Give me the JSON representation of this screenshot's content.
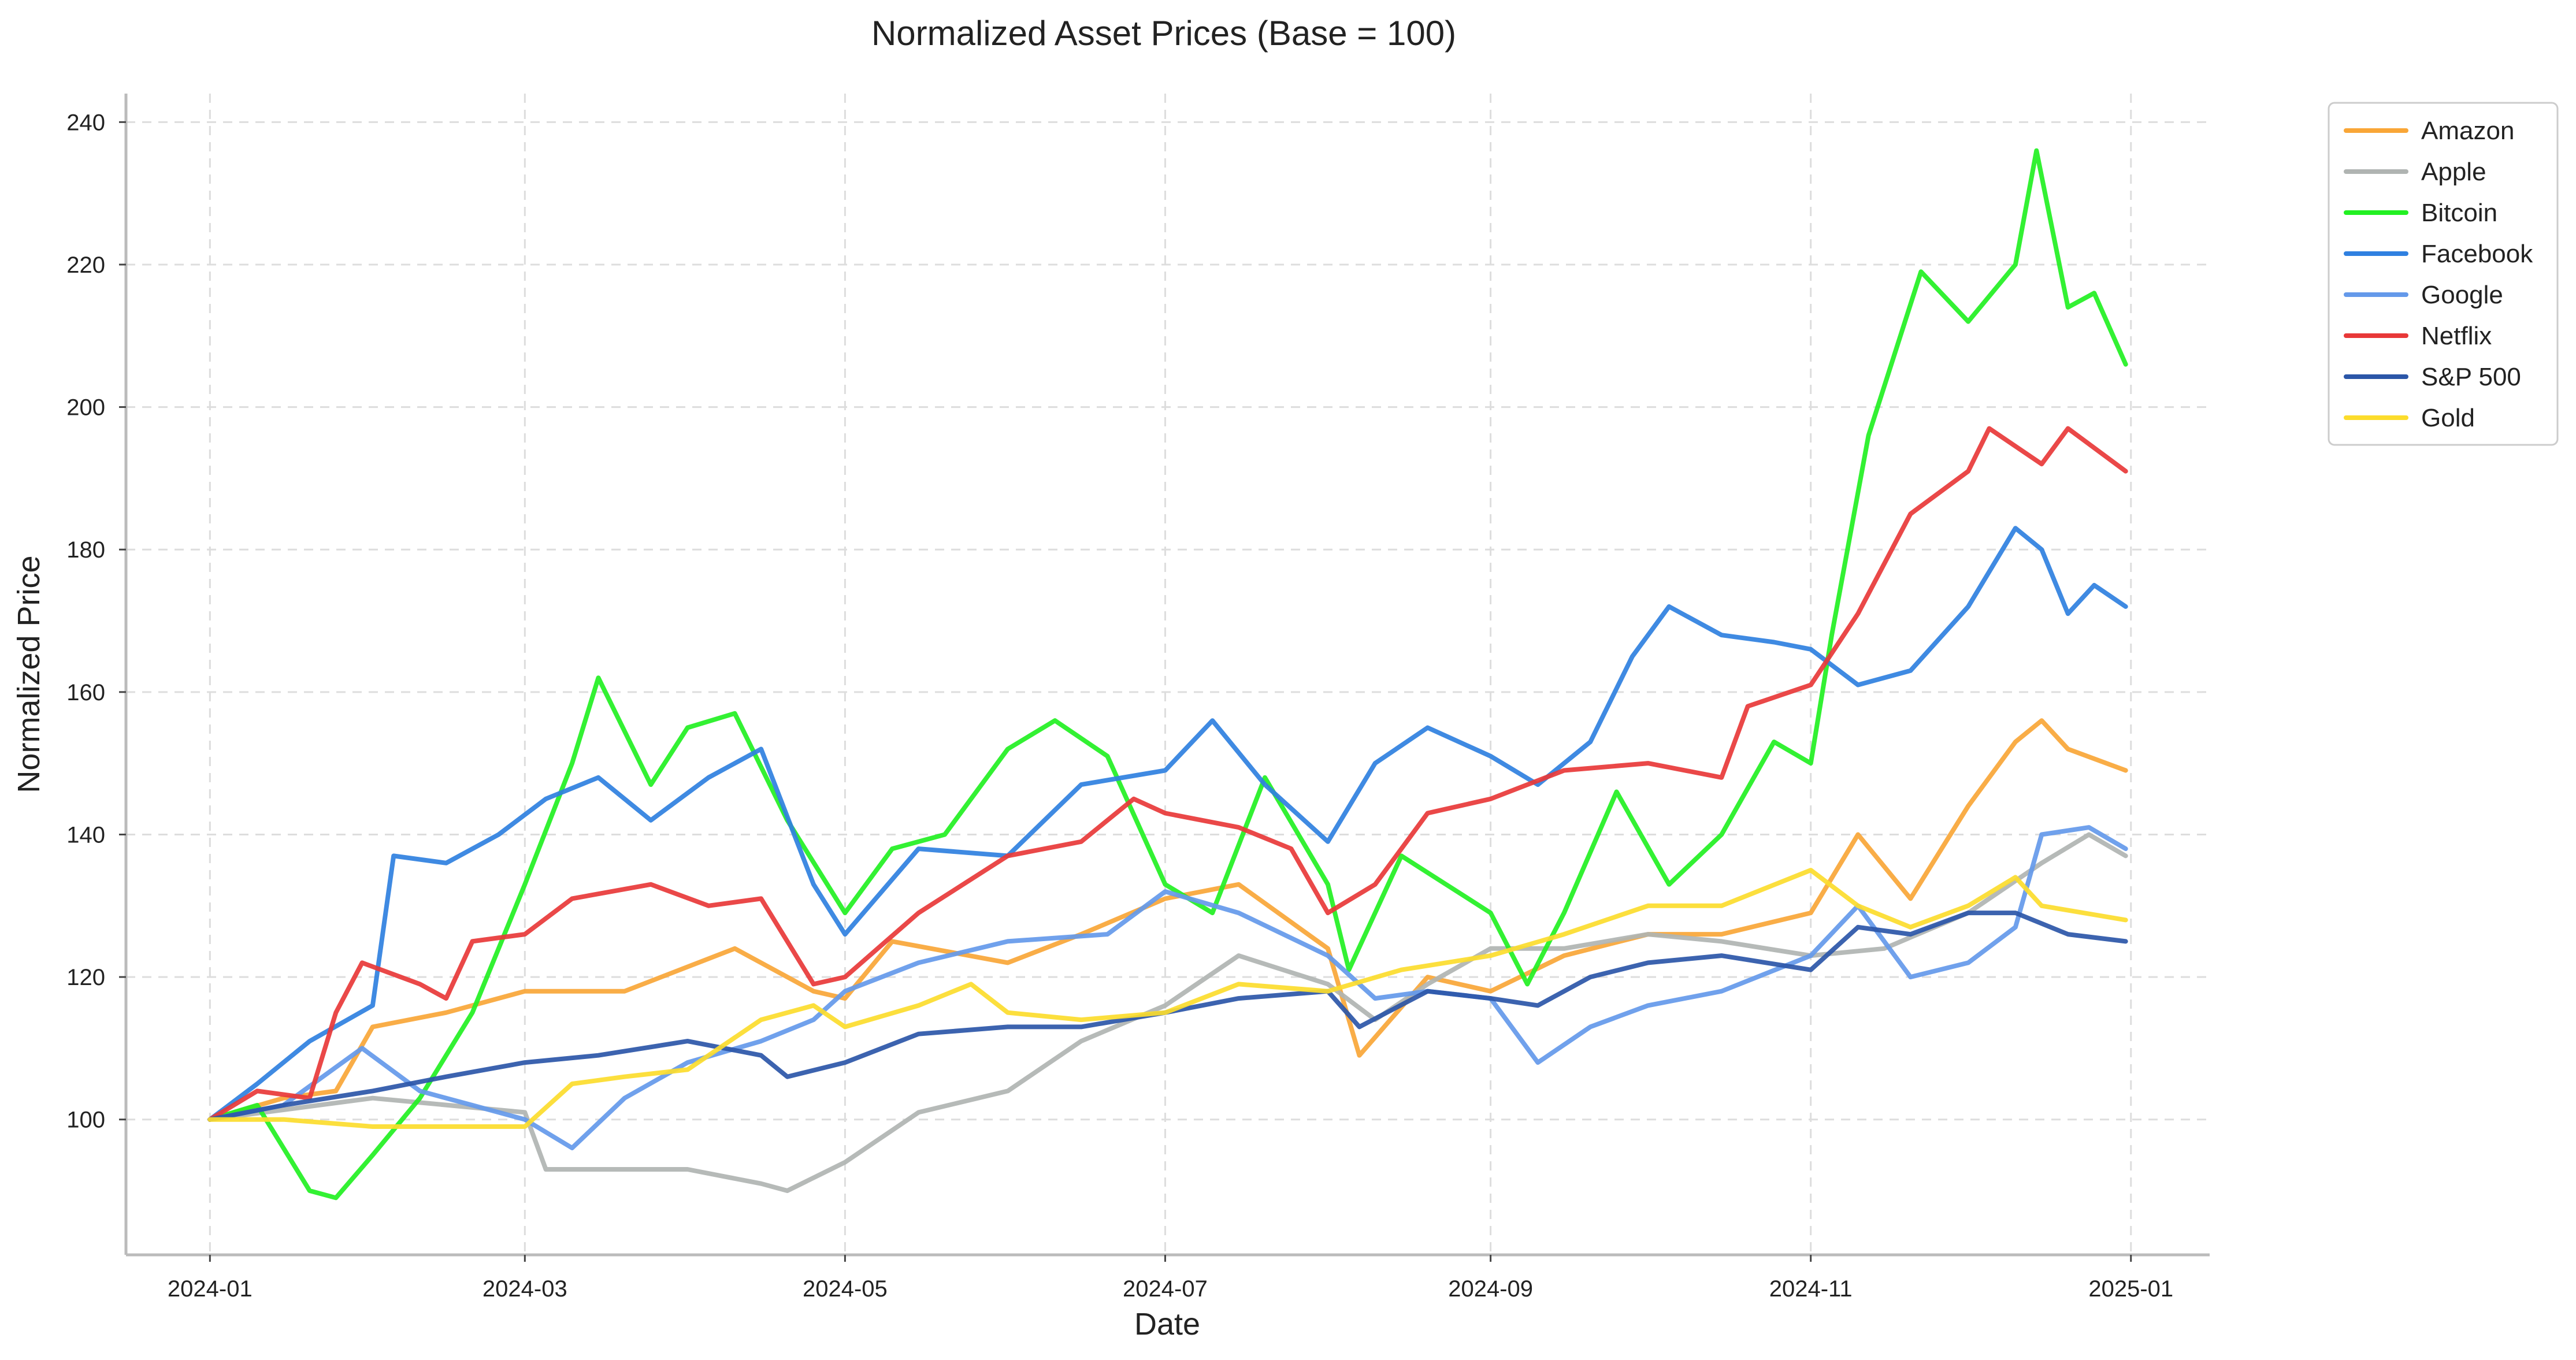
{
  "chart_data": {
    "type": "line",
    "title": "Normalized Asset Prices (Base = 100)",
    "xlabel": "Date",
    "ylabel": "Normalized Price",
    "x_axis": {
      "type": "date",
      "range": [
        "2023-12-16",
        "2025-01-16"
      ],
      "ticks": [
        "2024-01",
        "2024-03",
        "2024-05",
        "2024-07",
        "2024-09",
        "2024-11",
        "2025-01"
      ]
    },
    "y_axis": {
      "range": [
        81,
        244
      ],
      "ticks": [
        100,
        120,
        140,
        160,
        180,
        200,
        220,
        240
      ]
    },
    "grid": true,
    "legend_position": "outside-top-right",
    "series": [
      {
        "name": "Amazon",
        "color": "#f9a637",
        "points": [
          [
            "2024-01-01",
            100
          ],
          [
            "2024-01-15",
            103
          ],
          [
            "2024-01-25",
            104
          ],
          [
            "2024-02-01",
            113
          ],
          [
            "2024-02-15",
            115
          ],
          [
            "2024-03-01",
            118
          ],
          [
            "2024-03-20",
            118
          ],
          [
            "2024-04-10",
            124
          ],
          [
            "2024-04-25",
            118
          ],
          [
            "2024-05-01",
            117
          ],
          [
            "2024-05-10",
            125
          ],
          [
            "2024-06-01",
            122
          ],
          [
            "2024-06-15",
            126
          ],
          [
            "2024-07-01",
            131
          ],
          [
            "2024-07-15",
            133
          ],
          [
            "2024-08-01",
            124
          ],
          [
            "2024-08-07",
            109
          ],
          [
            "2024-08-20",
            120
          ],
          [
            "2024-09-01",
            118
          ],
          [
            "2024-09-15",
            123
          ],
          [
            "2024-10-01",
            126
          ],
          [
            "2024-10-15",
            126
          ],
          [
            "2024-11-01",
            129
          ],
          [
            "2024-11-10",
            140
          ],
          [
            "2024-11-20",
            131
          ],
          [
            "2024-12-01",
            144
          ],
          [
            "2024-12-10",
            153
          ],
          [
            "2024-12-15",
            156
          ],
          [
            "2024-12-20",
            152
          ],
          [
            "2024-12-31",
            149
          ]
        ]
      },
      {
        "name": "Apple",
        "color": "#b0b4b2",
        "points": [
          [
            "2024-01-01",
            100
          ],
          [
            "2024-02-01",
            103
          ],
          [
            "2024-03-01",
            101
          ],
          [
            "2024-03-05",
            93
          ],
          [
            "2024-04-01",
            93
          ],
          [
            "2024-04-15",
            91
          ],
          [
            "2024-04-20",
            90
          ],
          [
            "2024-05-01",
            94
          ],
          [
            "2024-05-15",
            101
          ],
          [
            "2024-06-01",
            104
          ],
          [
            "2024-06-15",
            111
          ],
          [
            "2024-07-01",
            116
          ],
          [
            "2024-07-15",
            123
          ],
          [
            "2024-08-01",
            119
          ],
          [
            "2024-08-10",
            114
          ],
          [
            "2024-08-20",
            119
          ],
          [
            "2024-09-01",
            124
          ],
          [
            "2024-09-15",
            124
          ],
          [
            "2024-10-01",
            126
          ],
          [
            "2024-10-15",
            125
          ],
          [
            "2024-11-01",
            123
          ],
          [
            "2024-11-15",
            124
          ],
          [
            "2024-12-01",
            129
          ],
          [
            "2024-12-15",
            136
          ],
          [
            "2024-12-24",
            140
          ],
          [
            "2024-12-31",
            137
          ]
        ]
      },
      {
        "name": "Bitcoin",
        "color": "#22f022",
        "points": [
          [
            "2024-01-01",
            100
          ],
          [
            "2024-01-10",
            102
          ],
          [
            "2024-01-20",
            90
          ],
          [
            "2024-01-25",
            89
          ],
          [
            "2024-02-01",
            95
          ],
          [
            "2024-02-10",
            103
          ],
          [
            "2024-02-20",
            115
          ],
          [
            "2024-03-01",
            133
          ],
          [
            "2024-03-10",
            150
          ],
          [
            "2024-03-15",
            162
          ],
          [
            "2024-03-25",
            147
          ],
          [
            "2024-04-01",
            155
          ],
          [
            "2024-04-10",
            157
          ],
          [
            "2024-04-20",
            142
          ],
          [
            "2024-05-01",
            129
          ],
          [
            "2024-05-10",
            138
          ],
          [
            "2024-05-20",
            140
          ],
          [
            "2024-06-01",
            152
          ],
          [
            "2024-06-10",
            156
          ],
          [
            "2024-06-20",
            151
          ],
          [
            "2024-07-01",
            133
          ],
          [
            "2024-07-10",
            129
          ],
          [
            "2024-07-20",
            148
          ],
          [
            "2024-08-01",
            133
          ],
          [
            "2024-08-05",
            121
          ],
          [
            "2024-08-15",
            137
          ],
          [
            "2024-09-01",
            129
          ],
          [
            "2024-09-08",
            119
          ],
          [
            "2024-09-15",
            129
          ],
          [
            "2024-09-25",
            146
          ],
          [
            "2024-10-05",
            133
          ],
          [
            "2024-10-15",
            140
          ],
          [
            "2024-10-25",
            153
          ],
          [
            "2024-11-01",
            150
          ],
          [
            "2024-11-05",
            168
          ],
          [
            "2024-11-12",
            196
          ],
          [
            "2024-11-22",
            219
          ],
          [
            "2024-12-01",
            212
          ],
          [
            "2024-12-10",
            220
          ],
          [
            "2024-12-14",
            236
          ],
          [
            "2024-12-20",
            214
          ],
          [
            "2024-12-25",
            216
          ],
          [
            "2024-12-31",
            206
          ]
        ]
      },
      {
        "name": "Facebook",
        "color": "#2f80e0",
        "points": [
          [
            "2024-01-01",
            100
          ],
          [
            "2024-01-10",
            105
          ],
          [
            "2024-01-20",
            111
          ],
          [
            "2024-02-01",
            116
          ],
          [
            "2024-02-05",
            137
          ],
          [
            "2024-02-15",
            136
          ],
          [
            "2024-02-25",
            140
          ],
          [
            "2024-03-05",
            145
          ],
          [
            "2024-03-15",
            148
          ],
          [
            "2024-03-25",
            142
          ],
          [
            "2024-04-05",
            148
          ],
          [
            "2024-04-15",
            152
          ],
          [
            "2024-04-25",
            133
          ],
          [
            "2024-05-01",
            126
          ],
          [
            "2024-05-15",
            138
          ],
          [
            "2024-06-01",
            137
          ],
          [
            "2024-06-15",
            147
          ],
          [
            "2024-07-01",
            149
          ],
          [
            "2024-07-10",
            156
          ],
          [
            "2024-07-20",
            147
          ],
          [
            "2024-08-01",
            139
          ],
          [
            "2024-08-10",
            150
          ],
          [
            "2024-08-20",
            155
          ],
          [
            "2024-09-01",
            151
          ],
          [
            "2024-09-10",
            147
          ],
          [
            "2024-09-20",
            153
          ],
          [
            "2024-09-28",
            165
          ],
          [
            "2024-10-05",
            172
          ],
          [
            "2024-10-15",
            168
          ],
          [
            "2024-10-25",
            167
          ],
          [
            "2024-11-01",
            166
          ],
          [
            "2024-11-10",
            161
          ],
          [
            "2024-11-20",
            163
          ],
          [
            "2024-12-01",
            172
          ],
          [
            "2024-12-10",
            183
          ],
          [
            "2024-12-15",
            180
          ],
          [
            "2024-12-20",
            171
          ],
          [
            "2024-12-25",
            175
          ],
          [
            "2024-12-31",
            172
          ]
        ]
      },
      {
        "name": "Google",
        "color": "#6499ea",
        "points": [
          [
            "2024-01-01",
            100
          ],
          [
            "2024-01-15",
            102
          ],
          [
            "2024-01-30",
            110
          ],
          [
            "2024-02-10",
            104
          ],
          [
            "2024-02-20",
            102
          ],
          [
            "2024-03-01",
            100
          ],
          [
            "2024-03-10",
            96
          ],
          [
            "2024-03-20",
            103
          ],
          [
            "2024-04-01",
            108
          ],
          [
            "2024-04-15",
            111
          ],
          [
            "2024-04-25",
            114
          ],
          [
            "2024-05-01",
            118
          ],
          [
            "2024-05-15",
            122
          ],
          [
            "2024-06-01",
            125
          ],
          [
            "2024-06-20",
            126
          ],
          [
            "2024-07-01",
            132
          ],
          [
            "2024-07-15",
            129
          ],
          [
            "2024-08-01",
            123
          ],
          [
            "2024-08-10",
            117
          ],
          [
            "2024-08-20",
            118
          ],
          [
            "2024-09-01",
            117
          ],
          [
            "2024-09-10",
            108
          ],
          [
            "2024-09-20",
            113
          ],
          [
            "2024-10-01",
            116
          ],
          [
            "2024-10-15",
            118
          ],
          [
            "2024-11-01",
            123
          ],
          [
            "2024-11-10",
            130
          ],
          [
            "2024-11-20",
            120
          ],
          [
            "2024-12-01",
            122
          ],
          [
            "2024-12-10",
            127
          ],
          [
            "2024-12-15",
            140
          ],
          [
            "2024-12-24",
            141
          ],
          [
            "2024-12-31",
            138
          ]
        ]
      },
      {
        "name": "Netflix",
        "color": "#e83838",
        "points": [
          [
            "2024-01-01",
            100
          ],
          [
            "2024-01-10",
            104
          ],
          [
            "2024-01-20",
            103
          ],
          [
            "2024-01-25",
            115
          ],
          [
            "2024-01-30",
            122
          ],
          [
            "2024-02-10",
            119
          ],
          [
            "2024-02-15",
            117
          ],
          [
            "2024-02-20",
            125
          ],
          [
            "2024-03-01",
            126
          ],
          [
            "2024-03-10",
            131
          ],
          [
            "2024-03-25",
            133
          ],
          [
            "2024-04-05",
            130
          ],
          [
            "2024-04-15",
            131
          ],
          [
            "2024-04-25",
            119
          ],
          [
            "2024-05-01",
            120
          ],
          [
            "2024-05-15",
            129
          ],
          [
            "2024-06-01",
            137
          ],
          [
            "2024-06-15",
            139
          ],
          [
            "2024-06-25",
            145
          ],
          [
            "2024-07-01",
            143
          ],
          [
            "2024-07-15",
            141
          ],
          [
            "2024-07-25",
            138
          ],
          [
            "2024-08-01",
            129
          ],
          [
            "2024-08-10",
            133
          ],
          [
            "2024-08-20",
            143
          ],
          [
            "2024-09-01",
            145
          ],
          [
            "2024-09-15",
            149
          ],
          [
            "2024-10-01",
            150
          ],
          [
            "2024-10-15",
            148
          ],
          [
            "2024-10-20",
            158
          ],
          [
            "2024-11-01",
            161
          ],
          [
            "2024-11-10",
            171
          ],
          [
            "2024-11-20",
            185
          ],
          [
            "2024-12-01",
            191
          ],
          [
            "2024-12-05",
            197
          ],
          [
            "2024-12-15",
            192
          ],
          [
            "2024-12-20",
            197
          ],
          [
            "2024-12-31",
            191
          ]
        ]
      },
      {
        "name": "S&P 500",
        "color": "#2b56a8",
        "points": [
          [
            "2024-01-01",
            100
          ],
          [
            "2024-01-15",
            102
          ],
          [
            "2024-02-01",
            104
          ],
          [
            "2024-02-15",
            106
          ],
          [
            "2024-03-01",
            108
          ],
          [
            "2024-03-15",
            109
          ],
          [
            "2024-04-01",
            111
          ],
          [
            "2024-04-15",
            109
          ],
          [
            "2024-04-20",
            106
          ],
          [
            "2024-05-01",
            108
          ],
          [
            "2024-05-15",
            112
          ],
          [
            "2024-06-01",
            113
          ],
          [
            "2024-06-15",
            113
          ],
          [
            "2024-07-01",
            115
          ],
          [
            "2024-07-15",
            117
          ],
          [
            "2024-08-01",
            118
          ],
          [
            "2024-08-07",
            113
          ],
          [
            "2024-08-20",
            118
          ],
          [
            "2024-09-01",
            117
          ],
          [
            "2024-09-10",
            116
          ],
          [
            "2024-09-20",
            120
          ],
          [
            "2024-10-01",
            122
          ],
          [
            "2024-10-15",
            123
          ],
          [
            "2024-11-01",
            121
          ],
          [
            "2024-11-10",
            127
          ],
          [
            "2024-11-20",
            126
          ],
          [
            "2024-12-01",
            129
          ],
          [
            "2024-12-10",
            129
          ],
          [
            "2024-12-20",
            126
          ],
          [
            "2024-12-31",
            125
          ]
        ]
      },
      {
        "name": "Gold",
        "color": "#fcdc2c",
        "points": [
          [
            "2024-01-01",
            100
          ],
          [
            "2024-01-15",
            100
          ],
          [
            "2024-02-01",
            99
          ],
          [
            "2024-02-15",
            99
          ],
          [
            "2024-03-01",
            99
          ],
          [
            "2024-03-10",
            105
          ],
          [
            "2024-03-20",
            106
          ],
          [
            "2024-04-01",
            107
          ],
          [
            "2024-04-15",
            114
          ],
          [
            "2024-04-25",
            116
          ],
          [
            "2024-05-01",
            113
          ],
          [
            "2024-05-15",
            116
          ],
          [
            "2024-05-25",
            119
          ],
          [
            "2024-06-01",
            115
          ],
          [
            "2024-06-15",
            114
          ],
          [
            "2024-07-01",
            115
          ],
          [
            "2024-07-15",
            119
          ],
          [
            "2024-08-01",
            118
          ],
          [
            "2024-08-15",
            121
          ],
          [
            "2024-09-01",
            123
          ],
          [
            "2024-09-15",
            126
          ],
          [
            "2024-10-01",
            130
          ],
          [
            "2024-10-15",
            130
          ],
          [
            "2024-11-01",
            135
          ],
          [
            "2024-11-10",
            130
          ],
          [
            "2024-11-20",
            127
          ],
          [
            "2024-12-01",
            130
          ],
          [
            "2024-12-10",
            134
          ],
          [
            "2024-12-15",
            130
          ],
          [
            "2024-12-31",
            128
          ]
        ]
      }
    ]
  }
}
